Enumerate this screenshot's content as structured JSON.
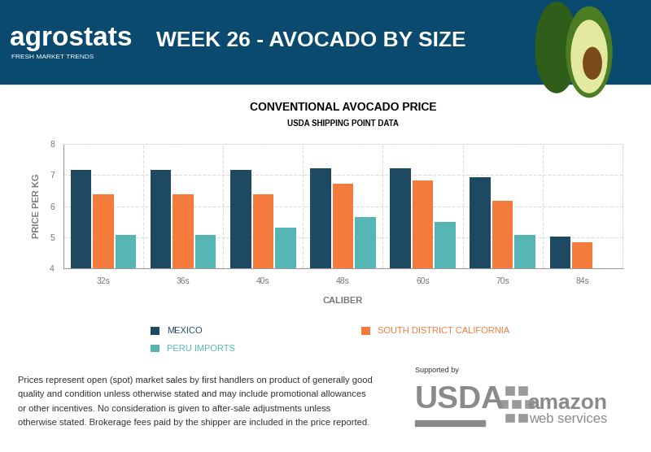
{
  "header": {
    "brand": "agrostats",
    "tagline": "FRESH MARKET TRENDS",
    "title": "WEEK 26 - AVOCADO BY SIZE"
  },
  "chart_data": {
    "type": "bar",
    "title": "CONVENTIONAL AVOCADO PRICE",
    "subtitle": "USDA SHIPPING POINT DATA",
    "x_label": "CALIBER",
    "y_label": "PRICE PER KG",
    "categories": [
      "32s",
      "36s",
      "40s",
      "48s",
      "60s",
      "70s",
      "84s"
    ],
    "series": [
      {
        "name": "MEXICO",
        "color": "#1d4a62",
        "values": [
          7.15,
          7.15,
          7.15,
          7.22,
          7.22,
          6.93,
          5.02
        ]
      },
      {
        "name": "SOUTH DISTRICT CALIFORNIA",
        "color": "#f47b3c",
        "values": [
          6.38,
          6.38,
          6.38,
          6.72,
          6.82,
          6.18,
          4.85
        ]
      },
      {
        "name": "PERU IMPORTS",
        "color": "#56b6b6",
        "values": [
          5.08,
          5.08,
          5.32,
          5.65,
          5.5,
          5.08,
          null
        ]
      }
    ],
    "ylim": [
      4,
      8
    ],
    "yticks": [
      4,
      5,
      6,
      7,
      8
    ],
    "grid": true,
    "legend": "upper center"
  },
  "footer": {
    "note_lines": [
      "Prices represent open (spot) market sales by first handlers on product of generally good",
      "quality and condition unless otherwise stated and may include promotional allowances",
      "or other incentives. No consideration is given to after-sale adjustments unless",
      "otherwise stated. Brokerage fees paid by the shipper are included in the price reported."
    ],
    "supported_by": "Supported by",
    "usda": "USDA",
    "amazon": "amazon",
    "web_services": "web services"
  }
}
